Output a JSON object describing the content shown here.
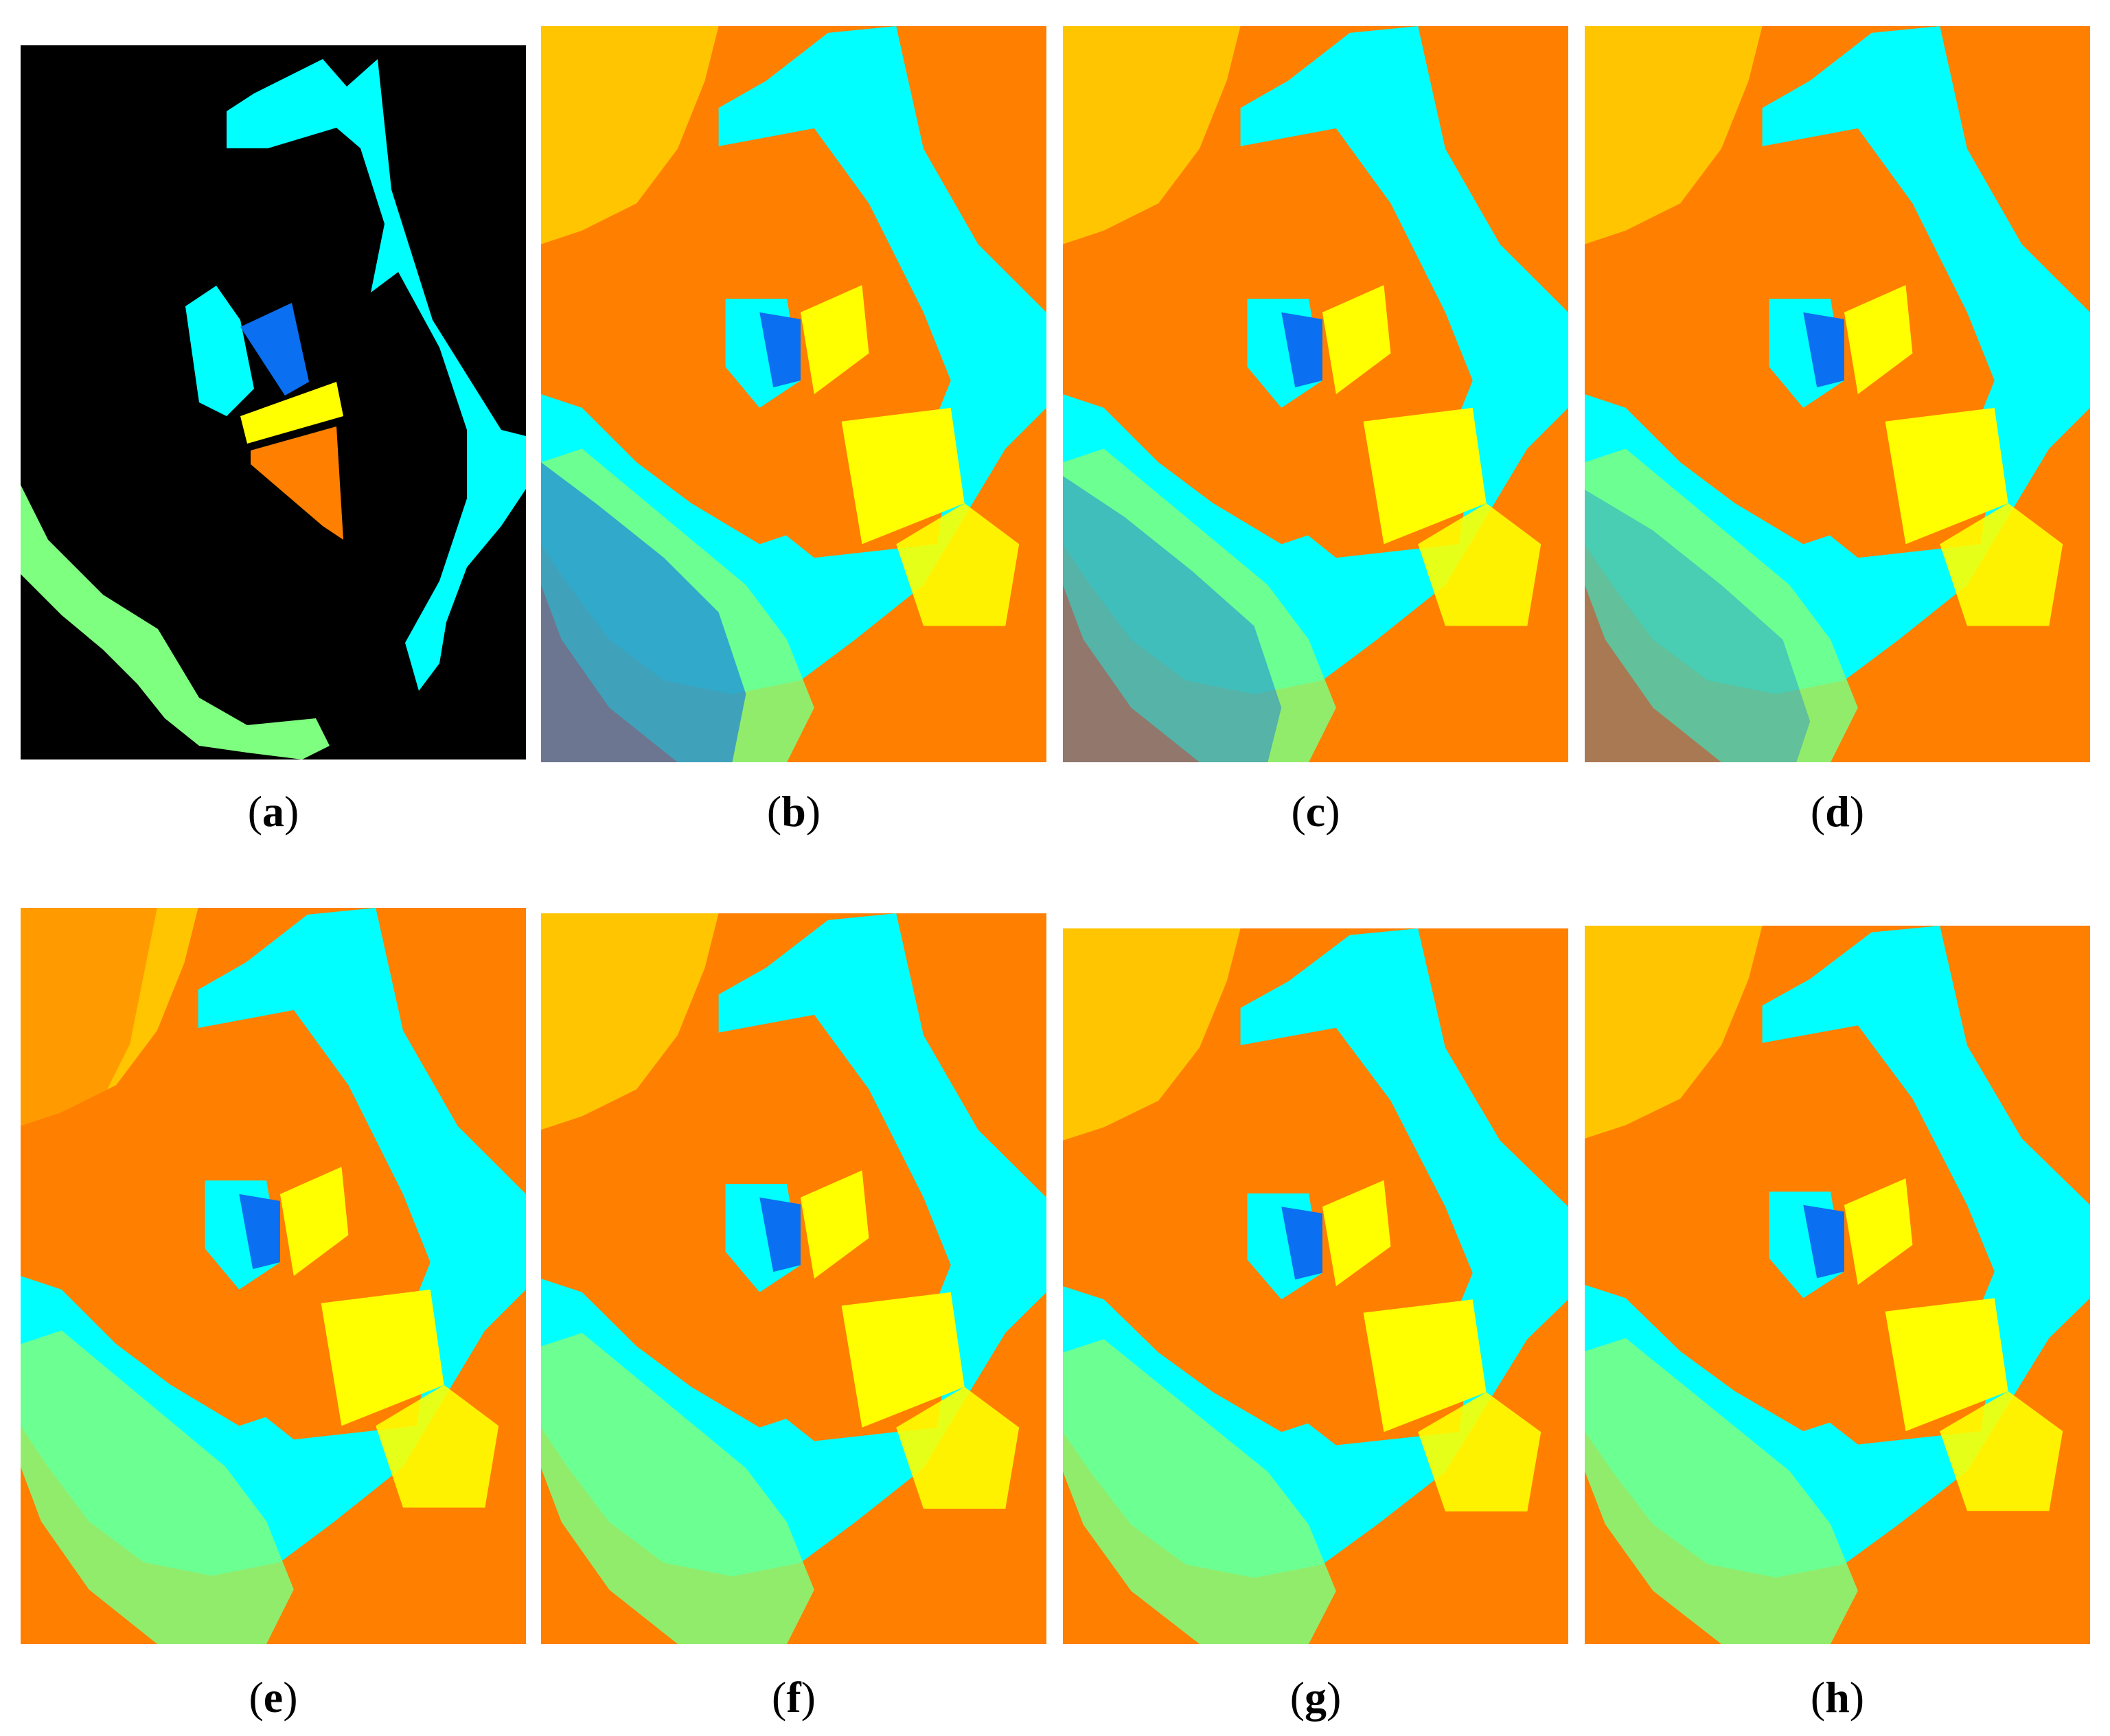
{
  "figure": {
    "panels": [
      {
        "id": "a",
        "caption_letter": "a",
        "kind": "ground-truth map"
      },
      {
        "id": "b",
        "caption_letter": "b",
        "kind": "classification map"
      },
      {
        "id": "c",
        "caption_letter": "c",
        "kind": "classification map"
      },
      {
        "id": "d",
        "caption_letter": "d",
        "kind": "classification map"
      },
      {
        "id": "e",
        "caption_letter": "e",
        "kind": "classification map"
      },
      {
        "id": "f",
        "caption_letter": "f",
        "kind": "classification map"
      },
      {
        "id": "g",
        "caption_letter": "g",
        "kind": "classification map"
      },
      {
        "id": "h",
        "caption_letter": "h",
        "kind": "classification map"
      }
    ],
    "palette": {
      "background": "#000000",
      "cyan": "#00ffff",
      "blue": "#0a6ff0",
      "yellow": "#ffff00",
      "orange": "#ff7f00",
      "light_green": "#7fff7f"
    }
  }
}
